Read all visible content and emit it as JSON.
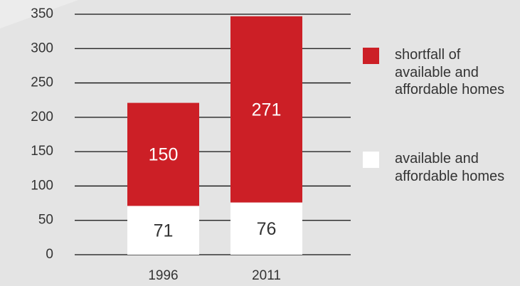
{
  "chart_data": {
    "type": "stacked_bar",
    "categories": [
      "1996",
      "2011"
    ],
    "series": [
      {
        "name": "available and affordable homes",
        "color": "#ffffff",
        "values": [
          71,
          76
        ]
      },
      {
        "name": "shortfall of available and affordable homes",
        "color": "#cc1f26",
        "values": [
          150,
          271
        ]
      }
    ],
    "ylim": [
      0,
      350
    ],
    "yticks": [
      0,
      50,
      100,
      150,
      200,
      250,
      300,
      350
    ],
    "grid": true
  }
}
